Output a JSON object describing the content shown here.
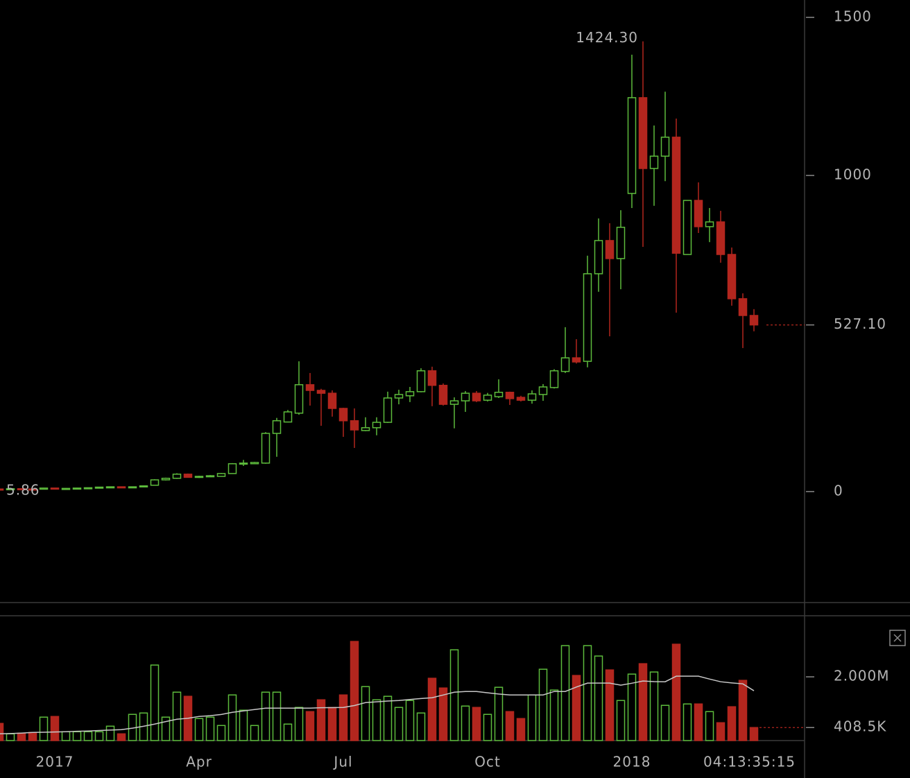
{
  "chart_data": [
    {
      "type": "candlestick",
      "categories": [
        null,
        null,
        null,
        null,
        null,
        "2017",
        null,
        null,
        null,
        null,
        null,
        null,
        null,
        null,
        null,
        null,
        null,
        null,
        "Apr",
        null,
        null,
        null,
        null,
        null,
        null,
        null,
        null,
        null,
        null,
        null,
        null,
        "Jul",
        null,
        null,
        null,
        null,
        null,
        null,
        null,
        null,
        null,
        null,
        null,
        null,
        "Oct",
        null,
        null,
        null,
        null,
        null,
        null,
        null,
        null,
        null,
        null,
        null,
        null,
        "2018",
        null,
        null,
        null,
        null,
        null,
        null,
        null,
        null,
        null,
        null,
        null
      ],
      "open": [
        8,
        7,
        9,
        8,
        7.5,
        11,
        9,
        10,
        11,
        12,
        14,
        15,
        13,
        15,
        20,
        37,
        42,
        55,
        45,
        48,
        48,
        57,
        88,
        88,
        90,
        184,
        220,
        248,
        338,
        320,
        311,
        263,
        224,
        193,
        202,
        219,
        296,
        303,
        316,
        382,
        336,
        276,
        287,
        311,
        289,
        300,
        314,
        298,
        289,
        307,
        329,
        380,
        423,
        412,
        689,
        794,
        737,
        943,
        1246,
        1022,
        1061,
        1121,
        750,
        921,
        838,
        853,
        750,
        610,
        557
      ],
      "high": [
        9,
        10,
        10,
        9,
        12,
        12,
        11,
        12,
        13,
        15,
        16,
        16,
        16,
        19,
        39,
        44,
        58,
        57,
        50,
        52,
        59,
        90,
        100,
        94,
        188,
        233,
        258,
        412,
        375,
        325,
        320,
        265,
        263,
        235,
        235,
        316,
        322,
        331,
        390,
        395,
        342,
        298,
        318,
        318,
        312,
        355,
        316,
        303,
        320,
        340,
        387,
        520,
        482,
        746,
        864,
        849,
        890,
        1382,
        1424.3,
        1158,
        1265,
        1180,
        921,
        978,
        897,
        888,
        772,
        627,
        577
      ],
      "low": [
        5.86,
        6.5,
        7,
        7,
        7,
        8,
        8.5,
        9.5,
        10.5,
        11.5,
        13,
        12,
        12.5,
        14,
        19,
        35,
        40,
        44,
        43,
        46,
        47,
        56,
        81,
        87,
        88,
        110,
        219,
        243,
        272,
        208,
        237,
        173,
        138,
        191,
        178,
        217,
        276,
        283,
        314,
        270,
        272,
        200,
        252,
        283,
        285,
        296,
        274,
        285,
        278,
        287,
        326,
        375,
        405,
        393,
        632,
        491,
        640,
        897,
        774,
        904,
        982,
        566,
        750,
        818,
        789,
        724,
        588,
        454,
        507
      ],
      "close": [
        7,
        9,
        8,
        7.5,
        11,
        9,
        10,
        11,
        12,
        14,
        15,
        13,
        15,
        18,
        37,
        42,
        55,
        45,
        48,
        50,
        57,
        88,
        90,
        92,
        184,
        224,
        252,
        338,
        320,
        311,
        263,
        224,
        195,
        202,
        219,
        296,
        307,
        316,
        382,
        336,
        276,
        287,
        311,
        287,
        305,
        314,
        294,
        289,
        309,
        331,
        382,
        423,
        410,
        689,
        794,
        737,
        836,
        1246,
        1022,
        1061,
        1121,
        754,
        921,
        838,
        853,
        750,
        610,
        557,
        527.1
      ],
      "up_color": "#5dbb3c",
      "down_color": "#b3261e",
      "ylim": [
        -349,
        1555
      ],
      "yticks": [
        0,
        1000,
        1500
      ],
      "annotations": [
        {
          "value": 1424.3,
          "label": "1424.30"
        },
        {
          "value": 5.86,
          "label": "5.86"
        }
      ],
      "last": {
        "value": 527.1,
        "label": "527.10"
      },
      "countdown": "04:13:35:15"
    },
    {
      "type": "bar",
      "values": [
        538000,
        211000,
        233000,
        255000,
        735000,
        756000,
        277000,
        277000,
        277000,
        277000,
        451000,
        211000,
        822000,
        865000,
        2370000,
        735000,
        1519000,
        1389000,
        691000,
        735000,
        473000,
        1432000,
        953000,
        473000,
        1519000,
        1519000,
        517000,
        1040000,
        909000,
        1280000,
        1040000,
        1432000,
        3111000,
        1694000,
        1280000,
        1389000,
        1040000,
        1258000,
        865000,
        1955000,
        1650000,
        2849000,
        1083000,
        1040000,
        822000,
        1672000,
        909000,
        691000,
        1432000,
        2239000,
        1585000,
        2980000,
        2043000,
        2980000,
        2653000,
        2217000,
        1258000,
        2086000,
        2413000,
        2152000,
        1105000,
        3024000,
        1149000,
        1149000,
        909000,
        560000,
        1062000,
        1890000,
        408500
      ],
      "ma": [
        211000,
        220000,
        235000,
        255000,
        262000,
        270000,
        277000,
        290000,
        300000,
        315000,
        330000,
        342000,
        390000,
        450000,
        517000,
        595000,
        669000,
        700000,
        756000,
        780000,
        820000,
        887000,
        930000,
        975000,
        1018000,
        1018000,
        1018000,
        1018000,
        1018000,
        1030000,
        1035000,
        1040000,
        1100000,
        1192000,
        1215000,
        1240000,
        1258000,
        1290000,
        1320000,
        1345000,
        1430000,
        1519000,
        1541000,
        1541000,
        1500000,
        1460000,
        1432000,
        1432000,
        1432000,
        1432000,
        1541000,
        1541000,
        1680000,
        1803000,
        1803000,
        1803000,
        1738000,
        1800000,
        1868000,
        1850000,
        1846000,
        2021000,
        2021000,
        2021000,
        1930000,
        1846000,
        1810000,
        1781000,
        1563000
      ],
      "ma_color": "#c8c8c8",
      "ylim": [
        0,
        3918000
      ],
      "yticks": [
        {
          "value": 2000000,
          "label": "2.000M"
        }
      ],
      "last": {
        "value": 408500,
        "label": "408.5K"
      }
    }
  ]
}
